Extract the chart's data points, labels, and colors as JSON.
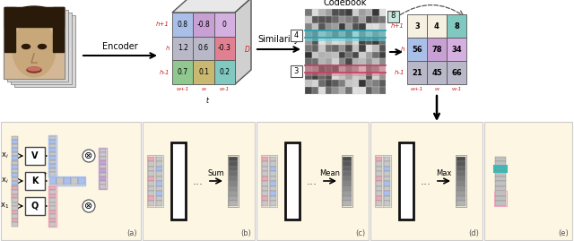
{
  "matrix_top_left": {
    "values": [
      [
        "0.8",
        "-0.8",
        "0"
      ],
      [
        "1.2",
        "0.6",
        "-0.3"
      ],
      [
        "0.7",
        "0.1",
        "0.2"
      ]
    ],
    "row_labels": [
      "h+1",
      "h",
      "h-1"
    ],
    "col_labels": [
      "w+1",
      "w",
      "w-1"
    ],
    "cell_colors": [
      [
        "#aabfe8",
        "#c8a0d4",
        "#d4b0e0"
      ],
      [
        "#b8b8c8",
        "#b8b8c8",
        "#e08090"
      ],
      [
        "#90c890",
        "#c8b870",
        "#80c8c0"
      ]
    ]
  },
  "matrix_right": {
    "values": [
      [
        "3",
        "4",
        "8"
      ],
      [
        "56",
        "78",
        "34"
      ],
      [
        "21",
        "45",
        "66"
      ]
    ],
    "row_labels": [
      "h+1",
      "h",
      "h-1"
    ],
    "col_labels": [
      "w+1",
      "w",
      "w-1"
    ],
    "cell_colors": [
      [
        "#f5f0e0",
        "#f5f0e0",
        "#80c8c0"
      ],
      [
        "#aabfe8",
        "#c8a0d4",
        "#d4b0e0"
      ],
      [
        "#b8b8c8",
        "#b8b8c8",
        "#b8b8c8"
      ]
    ]
  },
  "codebook_seed": 42,
  "red_label_color": "#cc2222",
  "cream": "#fdf6e3",
  "panel_labels": [
    "(a)",
    "(b)",
    "(c)",
    "(d)",
    "(e)"
  ],
  "panel_ops": [
    "",
    "Sum",
    "Mean",
    "Max",
    ""
  ]
}
